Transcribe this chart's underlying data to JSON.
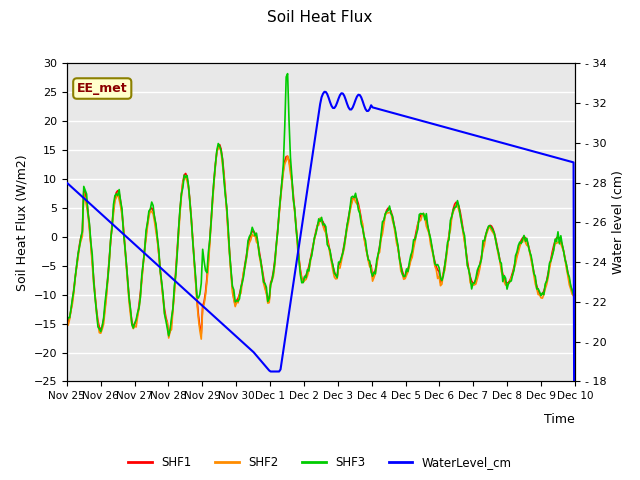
{
  "title": "Soil Heat Flux",
  "ylabel_left": "Soil Heat Flux (W/m2)",
  "ylabel_right": "Water level (cm)",
  "xlabel": "Time",
  "ylim_left": [
    -25,
    30
  ],
  "ylim_right": [
    18,
    34
  ],
  "background_color": "#ffffff",
  "plot_bg_color": "#e8e8e8",
  "grid_color": "#ffffff",
  "annotation_text": "EE_met",
  "annotation_bg": "#ffffcc",
  "annotation_border": "#8b8000",
  "annotation_text_color": "#8b0000",
  "colors": {
    "SHF1": "#ff0000",
    "SHF2": "#ff8c00",
    "SHF3": "#00cc00",
    "WaterLevel": "#0000ff"
  },
  "x_tick_positions": [
    0,
    1,
    2,
    3,
    4,
    5,
    6,
    7,
    8,
    9,
    10,
    11,
    12,
    13,
    14,
    15
  ],
  "x_tick_labels": [
    "Nov 25",
    "Nov 26",
    "Nov 27",
    "Nov 28",
    "Nov 29",
    "Nov 30",
    "Dec 1",
    "Dec 2",
    "Dec 3",
    "Dec 4",
    "Dec 5",
    "Dec 6",
    "Dec 7",
    "Dec 8",
    "Dec 9",
    "Dec 10"
  ],
  "xlim": [
    0,
    15
  ],
  "yticks_left": [
    -25,
    -20,
    -15,
    -10,
    -5,
    0,
    5,
    10,
    15,
    20,
    25,
    30
  ],
  "yticks_right": [
    18,
    20,
    22,
    24,
    26,
    28,
    30,
    32,
    34
  ]
}
